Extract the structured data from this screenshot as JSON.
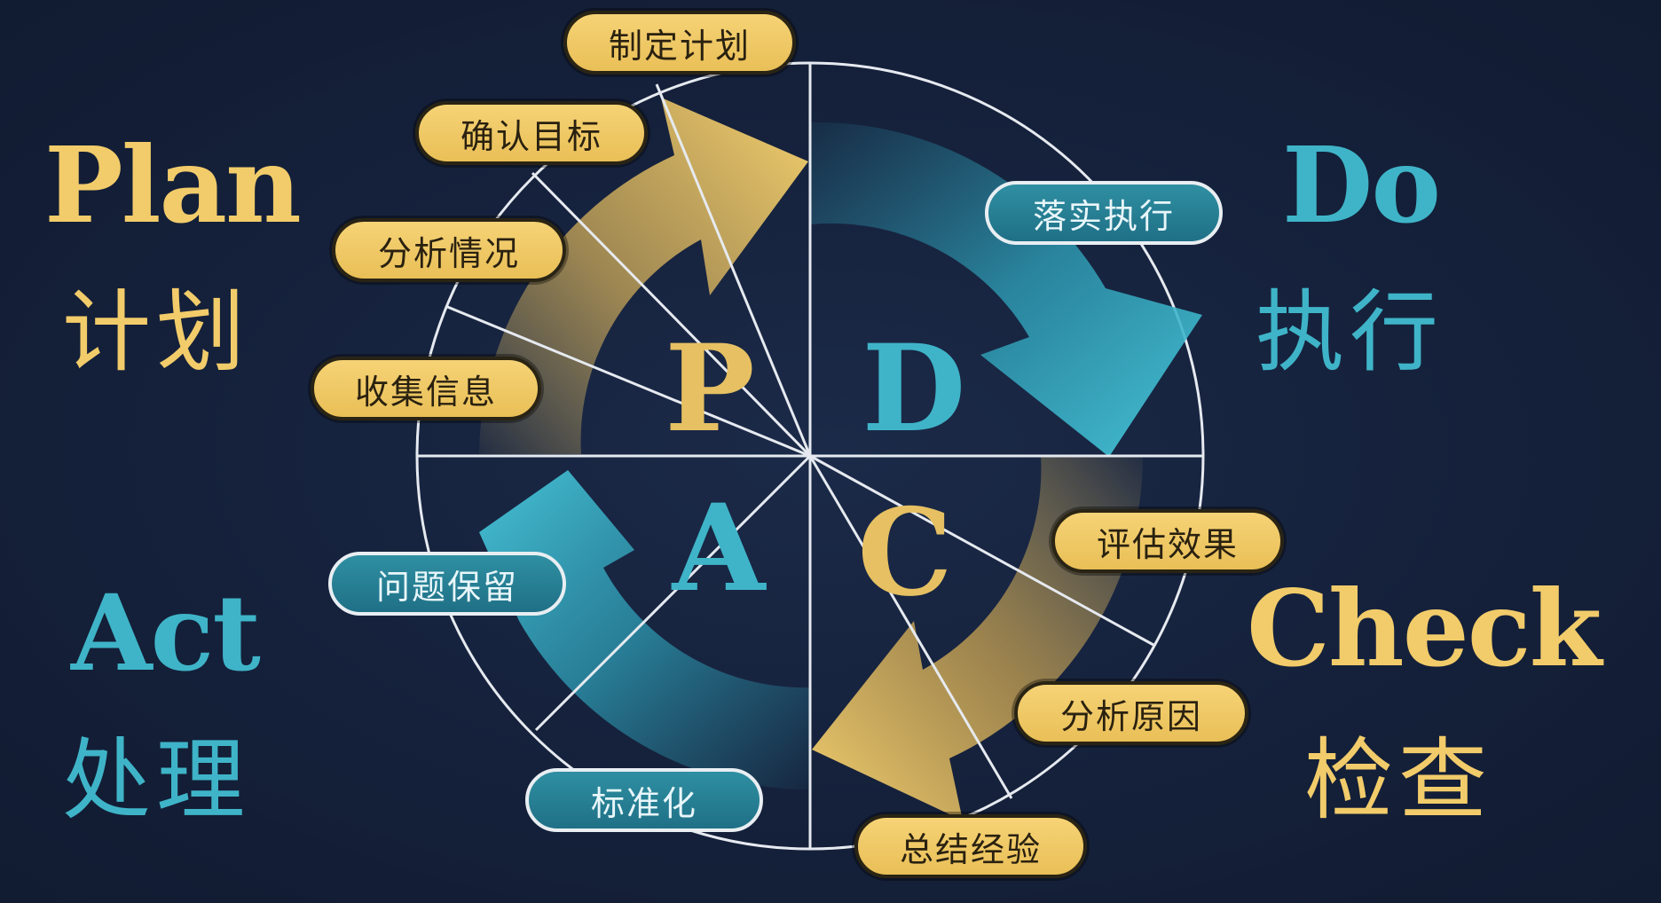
{
  "quadrants": {
    "plan": {
      "en": "Plan",
      "zh": "计划",
      "letter": "P"
    },
    "do": {
      "en": "Do",
      "zh": "执行",
      "letter": "D"
    },
    "check": {
      "en": "Check",
      "zh": "检查",
      "letter": "C"
    },
    "act": {
      "en": "Act",
      "zh": "处理",
      "letter": "A"
    }
  },
  "steps": {
    "plan": [
      "收集信息",
      "分析情况",
      "确认目标",
      "制定计划"
    ],
    "do": [
      "落实执行"
    ],
    "check": [
      "评估效果",
      "分析原因",
      "总结经验"
    ],
    "act": [
      "标准化",
      "问题保留"
    ]
  },
  "colors": {
    "gold": "#f2cc6a",
    "teal": "#3fb4c8",
    "background": "#15213b",
    "circle_line": "#e6eaf0"
  }
}
